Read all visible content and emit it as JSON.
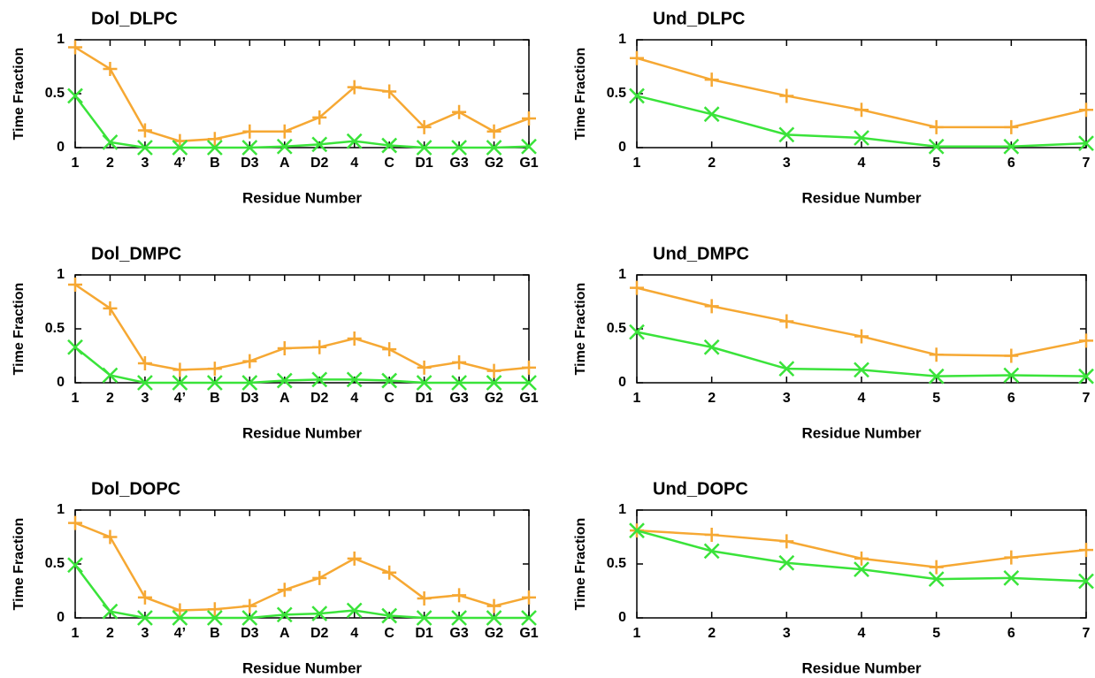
{
  "chart_data": [
    {
      "type": "line",
      "title": "Dol_DLPC",
      "xlabel": "Residue Number",
      "ylabel": "Time Fraction",
      "categories": [
        "1",
        "2",
        "3",
        "4’",
        "B",
        "D3",
        "A",
        "D2",
        "4",
        "C",
        "D1",
        "G3",
        "G2",
        "G1"
      ],
      "ylim": [
        0,
        1
      ],
      "yticks": [
        0,
        0.5,
        1
      ],
      "series": [
        {
          "color": "#f6a833",
          "marker": "plus",
          "values": [
            0.93,
            0.73,
            0.16,
            0.06,
            0.08,
            0.15,
            0.15,
            0.28,
            0.56,
            0.52,
            0.19,
            0.33,
            0.15,
            0.27
          ]
        },
        {
          "color": "#3ae33a",
          "marker": "cross",
          "values": [
            0.48,
            0.05,
            0,
            0,
            0,
            0,
            0.01,
            0.03,
            0.06,
            0.02,
            0,
            0,
            0,
            0.01
          ]
        }
      ]
    },
    {
      "type": "line",
      "title": "Und_DLPC",
      "xlabel": "Residue Number",
      "ylabel": "Time Fraction",
      "x": [
        1,
        2,
        3,
        4,
        5,
        6,
        7
      ],
      "xlim": [
        1,
        7
      ],
      "xticks": [
        1,
        2,
        3,
        4,
        5,
        6,
        7
      ],
      "ylim": [
        0,
        1
      ],
      "yticks": [
        0,
        0.5,
        1
      ],
      "series": [
        {
          "color": "#f6a833",
          "marker": "plus",
          "values": [
            0.83,
            0.63,
            0.48,
            0.35,
            0.19,
            0.19,
            0.35
          ]
        },
        {
          "color": "#3ae33a",
          "marker": "cross",
          "values": [
            0.48,
            0.31,
            0.12,
            0.09,
            0.01,
            0.01,
            0.04
          ]
        }
      ]
    },
    {
      "type": "line",
      "title": "Dol_DMPC",
      "xlabel": "Residue Number",
      "ylabel": "Time Fraction",
      "categories": [
        "1",
        "2",
        "3",
        "4’",
        "B",
        "D3",
        "A",
        "D2",
        "4",
        "C",
        "D1",
        "G3",
        "G2",
        "G1"
      ],
      "ylim": [
        0,
        1
      ],
      "yticks": [
        0,
        0.5,
        1
      ],
      "series": [
        {
          "color": "#f6a833",
          "marker": "plus",
          "values": [
            0.91,
            0.69,
            0.18,
            0.12,
            0.13,
            0.2,
            0.32,
            0.33,
            0.41,
            0.31,
            0.14,
            0.19,
            0.11,
            0.14
          ]
        },
        {
          "color": "#3ae33a",
          "marker": "cross",
          "values": [
            0.33,
            0.07,
            0,
            0,
            0,
            0,
            0.02,
            0.03,
            0.03,
            0.02,
            0,
            0,
            0,
            0
          ]
        }
      ]
    },
    {
      "type": "line",
      "title": "Und_DMPC",
      "xlabel": "Residue Number",
      "ylabel": "Time Fraction",
      "x": [
        1,
        2,
        3,
        4,
        5,
        6,
        7
      ],
      "xlim": [
        1,
        7
      ],
      "xticks": [
        1,
        2,
        3,
        4,
        5,
        6,
        7
      ],
      "ylim": [
        0,
        1
      ],
      "yticks": [
        0,
        0.5,
        1
      ],
      "series": [
        {
          "color": "#f6a833",
          "marker": "plus",
          "values": [
            0.88,
            0.71,
            0.57,
            0.43,
            0.26,
            0.25,
            0.39
          ]
        },
        {
          "color": "#3ae33a",
          "marker": "cross",
          "values": [
            0.47,
            0.33,
            0.13,
            0.12,
            0.06,
            0.07,
            0.06
          ]
        }
      ]
    },
    {
      "type": "line",
      "title": "Dol_DOPC",
      "xlabel": "Residue Number",
      "ylabel": "Time Fraction",
      "categories": [
        "1",
        "2",
        "3",
        "4’",
        "B",
        "D3",
        "A",
        "D2",
        "4",
        "C",
        "D1",
        "G3",
        "G2",
        "G1"
      ],
      "ylim": [
        0,
        1
      ],
      "yticks": [
        0,
        0.5,
        1
      ],
      "series": [
        {
          "color": "#f6a833",
          "marker": "plus",
          "values": [
            0.88,
            0.75,
            0.19,
            0.07,
            0.08,
            0.11,
            0.26,
            0.37,
            0.55,
            0.42,
            0.18,
            0.21,
            0.11,
            0.19
          ]
        },
        {
          "color": "#3ae33a",
          "marker": "cross",
          "values": [
            0.49,
            0.06,
            0,
            0,
            0,
            0,
            0.03,
            0.04,
            0.07,
            0.02,
            0,
            0,
            0,
            0
          ]
        }
      ]
    },
    {
      "type": "line",
      "title": "Und_DOPC",
      "xlabel": "Residue Number",
      "ylabel": "Time Fraction",
      "x": [
        1,
        2,
        3,
        4,
        5,
        6,
        7
      ],
      "xlim": [
        1,
        7
      ],
      "xticks": [
        1,
        2,
        3,
        4,
        5,
        6,
        7
      ],
      "ylim": [
        0,
        1
      ],
      "yticks": [
        0,
        0.5,
        1
      ],
      "series": [
        {
          "color": "#f6a833",
          "marker": "plus",
          "values": [
            0.81,
            0.77,
            0.71,
            0.55,
            0.47,
            0.56,
            0.63
          ]
        },
        {
          "color": "#3ae33a",
          "marker": "cross",
          "values": [
            0.81,
            0.62,
            0.51,
            0.45,
            0.36,
            0.37,
            0.34
          ]
        }
      ]
    }
  ]
}
